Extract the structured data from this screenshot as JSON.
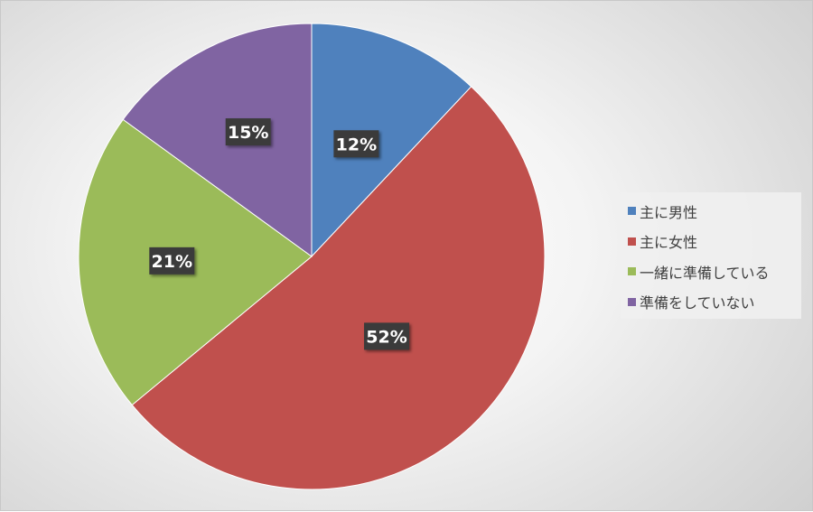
{
  "chart_data": {
    "type": "pie",
    "title": "",
    "categories": [
      "主に男性",
      "主に女性",
      "一緒に準備している",
      "準備をしていない"
    ],
    "values": [
      12,
      52,
      21,
      15
    ],
    "labels": [
      "12%",
      "52%",
      "21%",
      "15%"
    ],
    "colors": [
      "#4f81bd",
      "#c0504d",
      "#9bbb59",
      "#8064a2"
    ],
    "legend_position": "right"
  }
}
